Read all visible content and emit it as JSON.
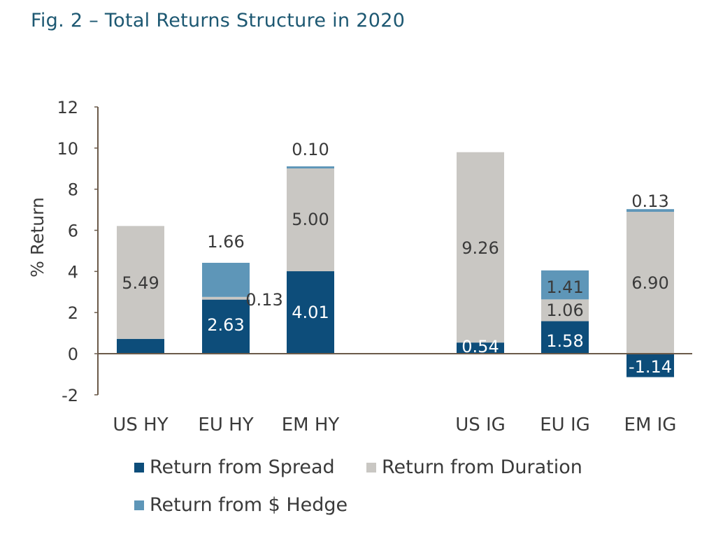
{
  "title": "Fig. 2 – Total Returns Structure in 2020",
  "colors": {
    "spread": "#0d4d7a",
    "duration": "#c9c7c3",
    "hedge": "#5e96b8",
    "axis": "#6b5a4a",
    "text": "#3a3a3a",
    "title": "#1d5872"
  },
  "chart_data": {
    "type": "bar",
    "stacked": true,
    "title": "Fig. 2 – Total Returns Structure in 2020",
    "xlabel": "",
    "ylabel": "% Return",
    "ylim": [
      -2,
      12
    ],
    "yticks": [
      -2,
      0,
      2,
      4,
      6,
      8,
      10,
      12
    ],
    "categories": [
      "US HY",
      "EU HY",
      "EM HY",
      "US IG",
      "EU IG",
      "EM IG"
    ],
    "series": [
      {
        "name": "Return from Spread",
        "values": [
          0.72,
          2.63,
          4.01,
          0.54,
          1.58,
          -1.14
        ],
        "labels": [
          "0.72",
          "2.63",
          "4.01",
          "0.54",
          "1.58",
          "-1.14"
        ]
      },
      {
        "name": "Return from Duration",
        "values": [
          5.49,
          0.13,
          5.0,
          9.26,
          1.06,
          6.9
        ],
        "labels": [
          "5.49",
          "0.13",
          "5.00",
          "9.26",
          "1.06",
          "6.90"
        ]
      },
      {
        "name": "Return from $ Hedge",
        "values": [
          0,
          1.66,
          0.1,
          0,
          1.41,
          0.13
        ],
        "labels": [
          "",
          "1.66",
          "0.10",
          "",
          "1.41",
          "0.13"
        ]
      }
    ],
    "grid": false,
    "legend_position": "bottom"
  }
}
